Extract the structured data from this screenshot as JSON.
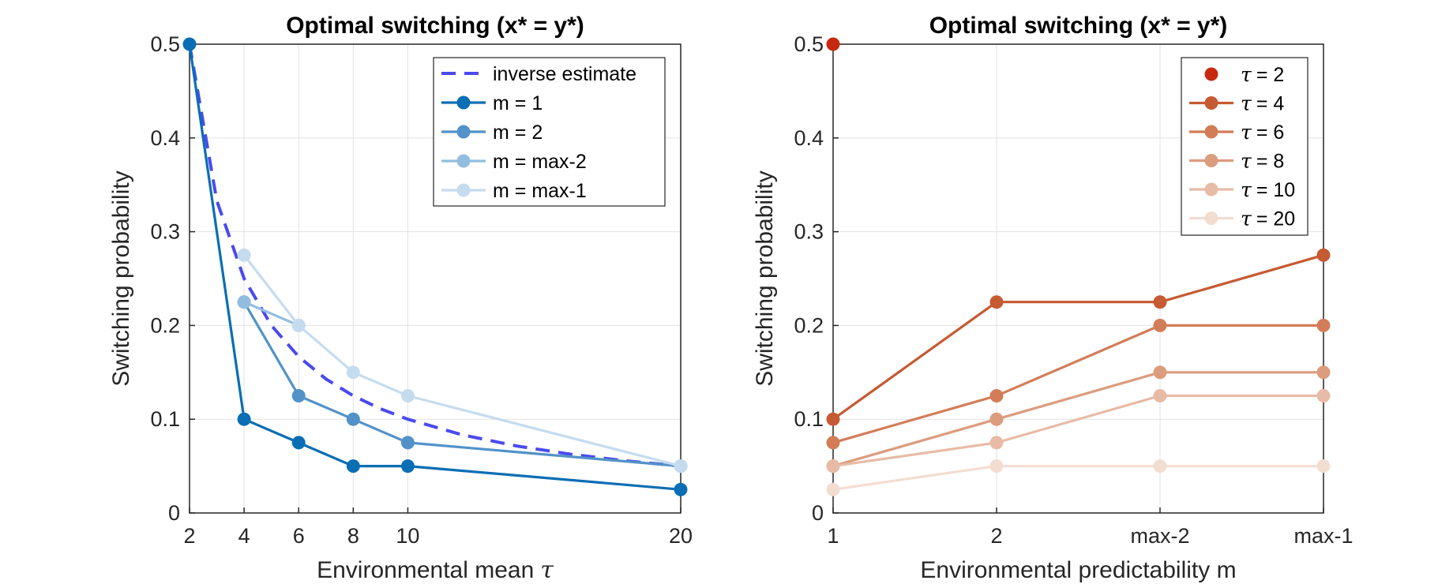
{
  "chart_data": [
    {
      "type": "line",
      "title": "Optimal switching (x* = y*)",
      "xlabel": "Environmental mean",
      "xlabel_symbol": "τ",
      "ylabel": "Switching probability",
      "xlim": [
        2,
        20
      ],
      "ylim": [
        0,
        0.5
      ],
      "xticks": [
        2,
        4,
        6,
        8,
        10,
        20
      ],
      "xtick_labels": [
        "2",
        "4",
        "6",
        "8",
        "10",
        "20"
      ],
      "yticks": [
        0,
        0.1,
        0.2,
        0.3,
        0.4,
        0.5
      ],
      "ytick_labels": [
        "0",
        "0.1",
        "0.2",
        "0.3",
        "0.4",
        "0.5"
      ],
      "grid": true,
      "legend_position": "top-right",
      "series": [
        {
          "name": "inverse estimate",
          "style": "dashed",
          "color": "#4a4af0",
          "marker": false,
          "x": [
            2,
            3,
            4,
            5,
            6,
            7,
            8,
            9,
            10,
            12,
            14,
            16,
            18,
            20
          ],
          "y": [
            0.5,
            0.333,
            0.25,
            0.2,
            0.1667,
            0.1429,
            0.125,
            0.1111,
            0.1,
            0.0833,
            0.0714,
            0.0625,
            0.0556,
            0.05
          ]
        },
        {
          "name": "m = 1",
          "style": "solid",
          "color": "#0a6eb4",
          "marker": true,
          "x": [
            2,
            4,
            6,
            8,
            10,
            20
          ],
          "y": [
            0.5,
            0.1,
            0.075,
            0.05,
            0.05,
            0.025
          ]
        },
        {
          "name": "m = 2",
          "style": "solid",
          "color": "#5292c8",
          "marker": true,
          "x": [
            4,
            6,
            8,
            10,
            20
          ],
          "y": [
            0.225,
            0.125,
            0.1,
            0.075,
            0.05
          ]
        },
        {
          "name": "m = max-2",
          "style": "solid",
          "color": "#93bde0",
          "marker": true,
          "x": [
            4,
            6
          ],
          "y": [
            0.225,
            0.2
          ]
        },
        {
          "name": "m = max-1",
          "style": "solid",
          "color": "#c5dcef",
          "marker": true,
          "x": [
            4,
            6,
            8,
            10,
            20
          ],
          "y": [
            0.275,
            0.2,
            0.15,
            0.125,
            0.05
          ]
        }
      ]
    },
    {
      "type": "line",
      "title": "Optimal switching (x* = y*)",
      "xlabel": "Environmental predictability m",
      "ylabel": "Switching probability",
      "xlim": [
        1,
        4
      ],
      "ylim": [
        0,
        0.5
      ],
      "xticks": [
        1,
        2,
        3,
        4
      ],
      "xtick_labels": [
        "1",
        "2",
        "max-2",
        "max-1"
      ],
      "yticks": [
        0,
        0.1,
        0.2,
        0.3,
        0.4,
        0.5
      ],
      "ytick_labels": [
        "0",
        "0.1",
        "0.2",
        "0.3",
        "0.4",
        "0.5"
      ],
      "grid": true,
      "legend_position": "top-right",
      "series": [
        {
          "name": "= 2",
          "symbol": "τ",
          "style": "solid",
          "color": "#c8280f",
          "marker": true,
          "x": [
            1
          ],
          "y": [
            0.5
          ]
        },
        {
          "name": "= 4",
          "symbol": "τ",
          "style": "solid",
          "color": "#c65a32",
          "marker": true,
          "x": [
            1,
            2,
            3,
            4
          ],
          "y": [
            0.1,
            0.225,
            0.225,
            0.275
          ]
        },
        {
          "name": "= 6",
          "symbol": "τ",
          "style": "solid",
          "color": "#d37d58",
          "marker": true,
          "x": [
            1,
            2,
            3,
            4
          ],
          "y": [
            0.075,
            0.125,
            0.2,
            0.2
          ]
        },
        {
          "name": "= 8",
          "symbol": "τ",
          "style": "solid",
          "color": "#dc9c7e",
          "marker": true,
          "x": [
            1,
            2,
            3,
            4
          ],
          "y": [
            0.05,
            0.1,
            0.15,
            0.15
          ]
        },
        {
          "name": "= 10",
          "symbol": "τ",
          "style": "solid",
          "color": "#e8bba6",
          "marker": true,
          "x": [
            1,
            2,
            3,
            4
          ],
          "y": [
            0.05,
            0.075,
            0.125,
            0.125
          ]
        },
        {
          "name": "= 20",
          "symbol": "τ",
          "style": "solid",
          "color": "#f3ddd1",
          "marker": true,
          "x": [
            1,
            2,
            3,
            4
          ],
          "y": [
            0.025,
            0.05,
            0.05,
            0.05
          ]
        }
      ]
    }
  ]
}
